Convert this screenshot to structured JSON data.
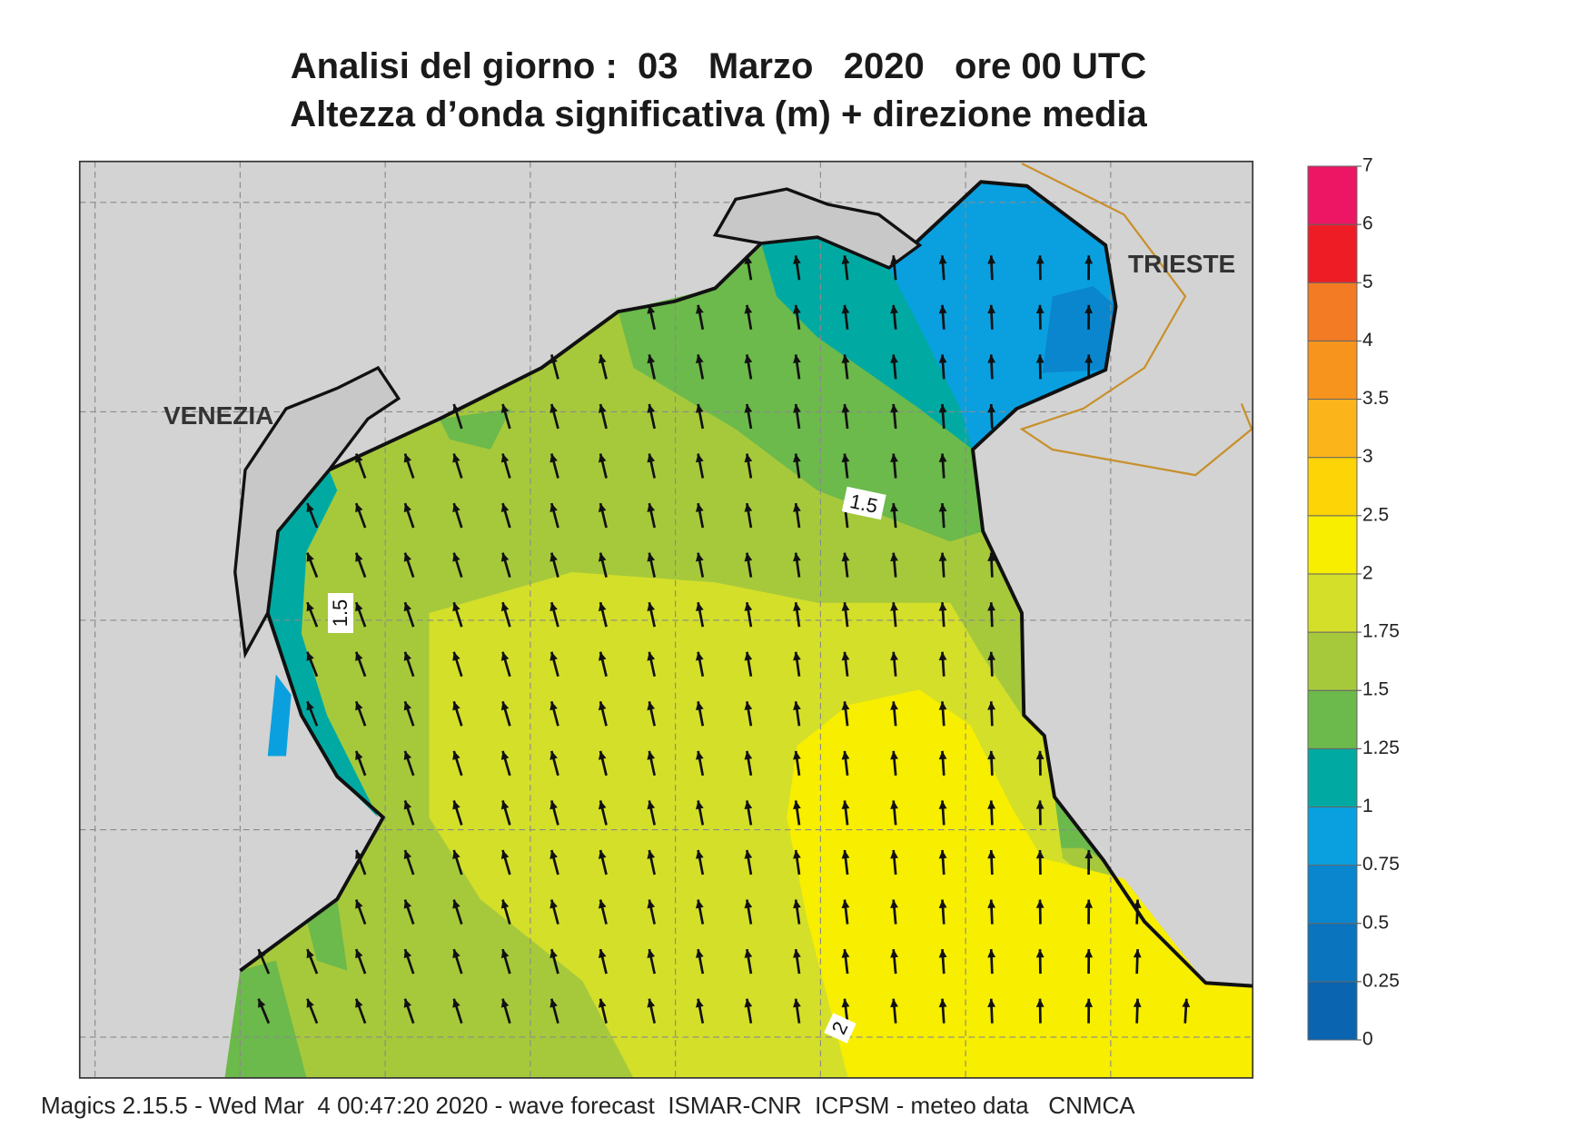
{
  "title": [
    "Analisi del giorno :  03   Marzo   2020   ore 00 UTC",
    "Altezza d’onda significativa (m) + direzione media"
  ],
  "places": [
    "VENEZIA",
    "TRIESTE"
  ],
  "contour_labels": [
    "1.5",
    "1.5",
    "2"
  ],
  "colorbar": {
    "ticks": [
      0,
      0.25,
      0.5,
      0.75,
      1,
      1.25,
      1.5,
      1.75,
      2,
      2.5,
      3,
      3.5,
      4,
      5,
      6,
      7
    ],
    "colors": [
      "#0a64b0",
      "#0a74bf",
      "#0a86cf",
      "#0aa0e0",
      "#00aaa2",
      "#6cb94c",
      "#a6c93b",
      "#d4df2a",
      "#f7ee00",
      "#fdd406",
      "#fbb51b",
      "#f7941d",
      "#f37b23",
      "#ee1d25",
      "#ec1664"
    ]
  },
  "footer": "Magics 2.15.5 - Wed Mar  4 00:47:20 2020 - wave forecast  ISMAR-CNR  ICPSM - meteo data   CNMCA"
}
